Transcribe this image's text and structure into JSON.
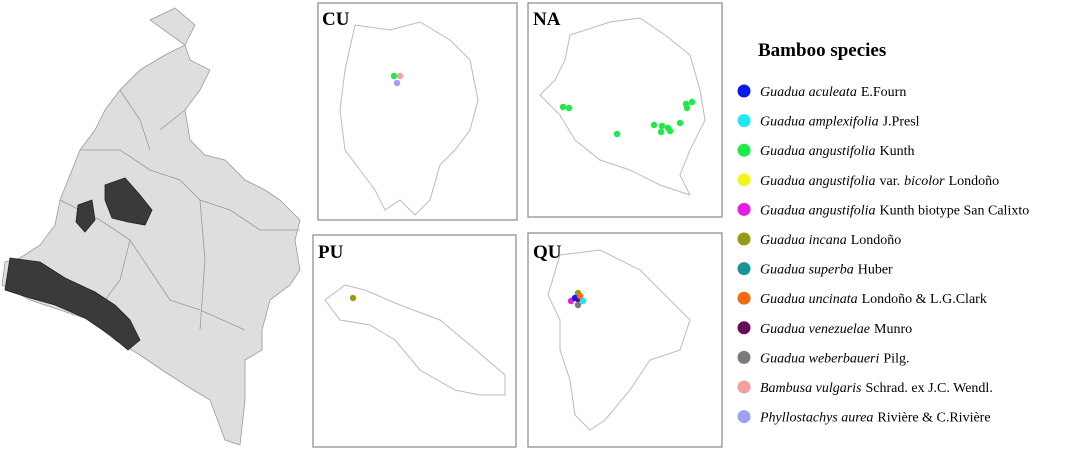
{
  "panels": [
    {
      "label": "CU"
    },
    {
      "label": "NA"
    },
    {
      "label": "PU"
    },
    {
      "label": "QU"
    }
  ],
  "legend": {
    "title": "Bamboo species",
    "entries": [
      {
        "color": "#0a1de8",
        "parts": [
          {
            "text": "Guadua aculeata",
            "italic": true
          },
          {
            "text": "E.Fourn",
            "italic": false
          }
        ]
      },
      {
        "color": "#1ee8f5",
        "parts": [
          {
            "text": "Guadua amplexifolia",
            "italic": true
          },
          {
            "text": "J.Presl",
            "italic": false
          }
        ]
      },
      {
        "color": "#1bea4a",
        "parts": [
          {
            "text": "Guadua angustifolia",
            "italic": true
          },
          {
            "text": "Kunth",
            "italic": false
          }
        ]
      },
      {
        "color": "#f5f51a",
        "parts": [
          {
            "text": "Guadua angustifolia",
            "italic": true
          },
          {
            "text": "var.",
            "italic": false
          },
          {
            "text": "bicolor",
            "italic": true
          },
          {
            "text": "Londoño",
            "italic": false
          }
        ]
      },
      {
        "color": "#e51ce8",
        "parts": [
          {
            "text": "Guadua angustifolia",
            "italic": true
          },
          {
            "text": "Kunth biotype San Calixto",
            "italic": false
          }
        ]
      },
      {
        "color": "#9a9a10",
        "parts": [
          {
            "text": "Guadua incana",
            "italic": true
          },
          {
            "text": "Londoño",
            "italic": false
          }
        ]
      },
      {
        "color": "#1a9595",
        "parts": [
          {
            "text": "Guadua superba",
            "italic": true
          },
          {
            "text": "Huber",
            "italic": false
          }
        ]
      },
      {
        "color": "#f56a10",
        "parts": [
          {
            "text": "Guadua uncinata",
            "italic": true
          },
          {
            "text": "Londoño & L.G.Clark",
            "italic": false
          }
        ]
      },
      {
        "color": "#6a0a5a",
        "parts": [
          {
            "text": "Guadua venezuelae",
            "italic": true
          },
          {
            "text": "Munro",
            "italic": false
          }
        ]
      },
      {
        "color": "#7a7a7a",
        "parts": [
          {
            "text": "Guadua weberbaueri",
            "italic": true
          },
          {
            "text": "Pilg.",
            "italic": false
          }
        ]
      },
      {
        "color": "#f2a0a0",
        "parts": [
          {
            "text": "Bambusa vulgaris",
            "italic": true
          },
          {
            "text": "Schrad. ex J.C. Wendl.",
            "italic": false
          }
        ]
      },
      {
        "color": "#a0a0f0",
        "parts": [
          {
            "text": "Phyllostachys aurea",
            "italic": true
          },
          {
            "text": "Rivière & C.Rivière",
            "italic": false
          }
        ]
      }
    ]
  }
}
